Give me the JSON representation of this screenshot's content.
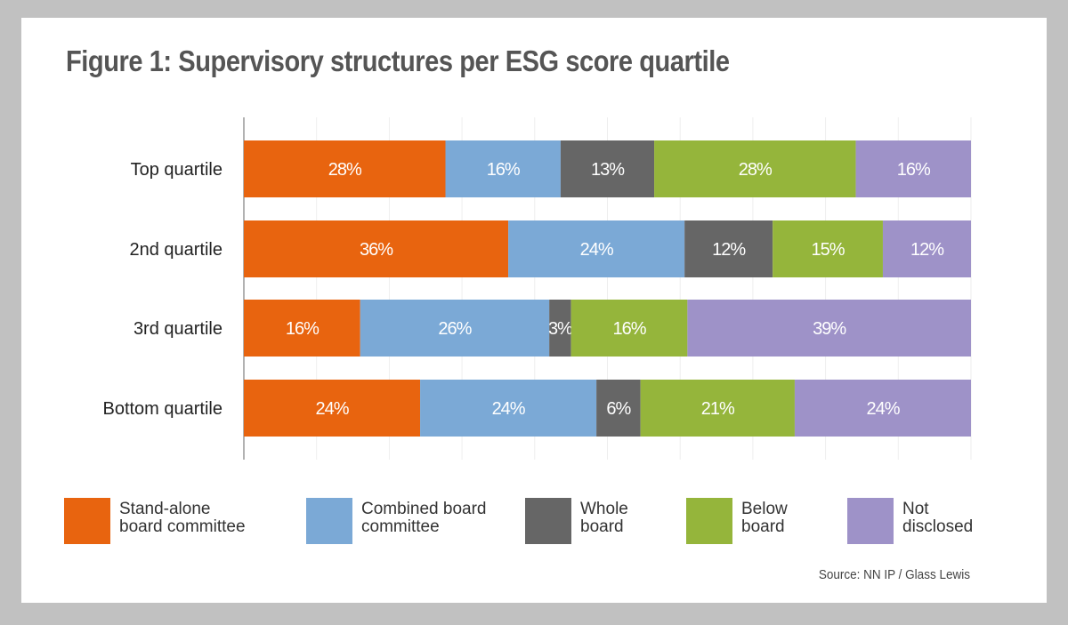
{
  "title": "Figure 1: Supervisory structures per ESG score quartile",
  "source": "Source: NN IP / Glass Lewis",
  "chart_data": {
    "type": "bar",
    "orientation": "horizontal",
    "stacked": true,
    "title": "Figure 1: Supervisory structures per ESG score quartile",
    "categories": [
      "Top  quartile",
      "2nd  quartile",
      "3rd quartile",
      "Bottom quartile"
    ],
    "series": [
      {
        "name": "Stand-alone board committee",
        "color": "#E8640F",
        "values": [
          28,
          36,
          16,
          24
        ]
      },
      {
        "name": "Combined board committee",
        "color": "#7BA9D6",
        "values": [
          16,
          24,
          26,
          24
        ]
      },
      {
        "name": "Whole board",
        "color": "#666666",
        "values": [
          13,
          12,
          3,
          6
        ]
      },
      {
        "name": "Below board",
        "color": "#95B53B",
        "values": [
          28,
          15,
          16,
          21
        ]
      },
      {
        "name": "Not disclosed",
        "color": "#9E92C8",
        "values": [
          16,
          12,
          39,
          24
        ]
      }
    ],
    "legend_lines": [
      [
        "Stand-alone",
        "board committee"
      ],
      [
        "Combined board",
        "committee"
      ],
      [
        "Whole",
        "board"
      ],
      [
        "Below",
        "board"
      ],
      [
        "Not",
        "disclosed"
      ]
    ],
    "xlim": [
      0,
      100
    ],
    "grid": true,
    "legend_position": "bottom",
    "value_suffix": "%"
  }
}
